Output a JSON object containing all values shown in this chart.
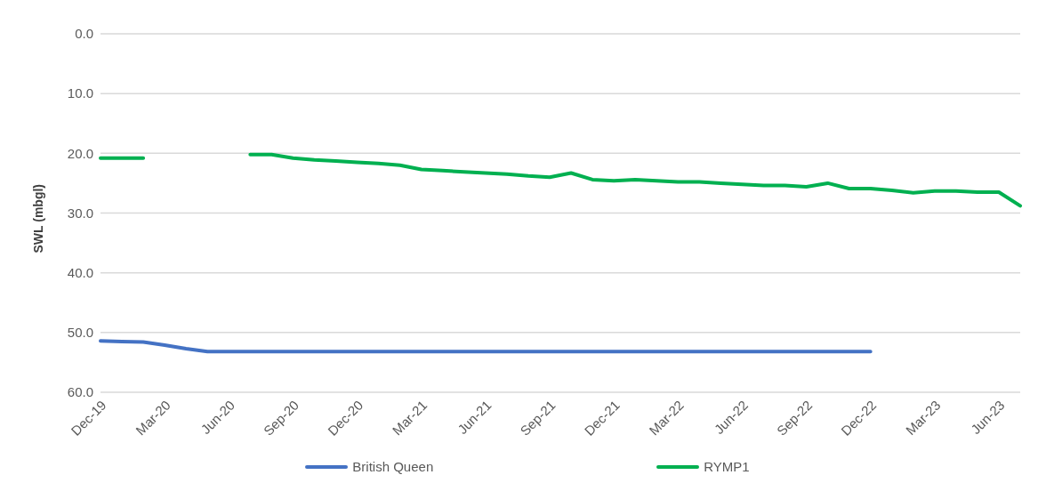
{
  "chart_data": {
    "type": "line",
    "ylabel": "SWL (mbgl)",
    "categories": [
      "Dec-19",
      null,
      null,
      "Mar-20",
      null,
      null,
      "Jun-20",
      null,
      null,
      "Sep-20",
      null,
      null,
      "Dec-20",
      null,
      null,
      "Mar-21",
      null,
      null,
      "Jun-21",
      null,
      null,
      "Sep-21",
      null,
      null,
      "Dec-21",
      null,
      null,
      "Mar-22",
      null,
      null,
      "Jun-22",
      null,
      null,
      "Sep-22",
      null,
      null,
      "Dec-22",
      null,
      null,
      "Mar-23",
      null,
      null,
      "Jun-23",
      null
    ],
    "series": [
      {
        "name": "British Queen",
        "color": "#4472c4",
        "values": [
          51.4,
          51.5,
          51.6,
          52.1,
          52.7,
          53.2,
          53.2,
          53.2,
          53.2,
          53.2,
          53.2,
          53.2,
          53.2,
          53.2,
          53.2,
          53.2,
          53.2,
          53.2,
          53.2,
          53.2,
          53.2,
          53.2,
          53.2,
          53.2,
          53.2,
          53.2,
          53.2,
          53.2,
          53.2,
          53.2,
          53.2,
          53.2,
          53.2,
          53.2,
          53.2,
          53.2,
          53.2,
          null,
          null,
          null,
          null,
          null,
          null,
          null
        ]
      },
      {
        "name": "RYMP1",
        "color": "#00b050",
        "values": [
          20.8,
          20.8,
          20.8,
          null,
          null,
          null,
          null,
          20.2,
          20.2,
          20.8,
          21.1,
          21.3,
          21.5,
          21.7,
          22.0,
          22.7,
          22.9,
          23.1,
          23.3,
          23.5,
          23.8,
          24.0,
          23.3,
          24.4,
          24.6,
          24.4,
          24.6,
          24.8,
          24.8,
          25.0,
          25.2,
          25.4,
          25.4,
          25.6,
          25.0,
          25.9,
          25.9,
          26.2,
          26.6,
          26.3,
          26.3,
          26.5,
          26.5,
          28.8
        ]
      }
    ],
    "ylim": [
      60,
      0
    ],
    "yticks": [
      {
        "value": 0,
        "label": "0.0"
      },
      {
        "value": 10,
        "label": "10.0"
      },
      {
        "value": 20,
        "label": "20.0"
      },
      {
        "value": 30,
        "label": "30.0"
      },
      {
        "value": 40,
        "label": "40.0"
      },
      {
        "value": 50,
        "label": "50.0"
      },
      {
        "value": 60,
        "label": "60.0"
      }
    ],
    "grid": "y",
    "legend": "bottom",
    "marker": "none",
    "line_style": "solid"
  }
}
